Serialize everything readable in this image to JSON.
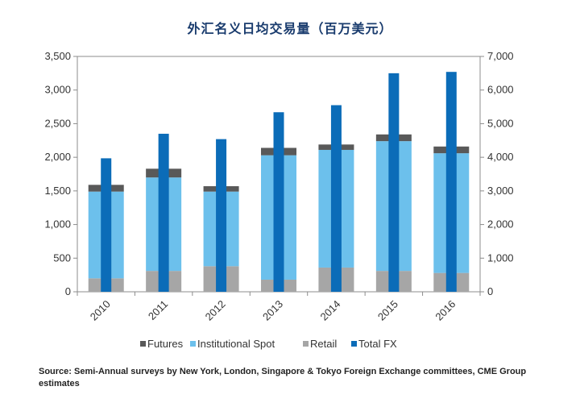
{
  "chart_data": {
    "type": "bar",
    "title": "外汇名义日均交易量（百万美元）",
    "categories": [
      "2010",
      "2011",
      "2012",
      "2013",
      "2014",
      "2015",
      "2016"
    ],
    "stacked_series_left_axis": [
      {
        "name": "Retail",
        "color": "#a6a6a6",
        "values": [
          200,
          310,
          380,
          180,
          360,
          310,
          280
        ]
      },
      {
        "name": "Institutional Spot",
        "color": "#6cc0ec",
        "values": [
          1290,
          1390,
          1110,
          1850,
          1750,
          1930,
          1780
        ]
      },
      {
        "name": "Futures",
        "color": "#595959",
        "values": [
          100,
          130,
          80,
          110,
          80,
          100,
          100
        ]
      }
    ],
    "series_right_axis": [
      {
        "name": "Total FX",
        "color": "#0b6cb8",
        "values": [
          3970,
          4700,
          4540,
          5340,
          5550,
          6500,
          6540
        ]
      }
    ],
    "left_axis": {
      "ylim": [
        0,
        3500
      ],
      "ticks": [
        "0",
        "500",
        "1,000",
        "1,500",
        "2,000",
        "2,500",
        "3,000",
        "3,500"
      ]
    },
    "right_axis": {
      "ylim": [
        0,
        7000
      ],
      "ticks": [
        "0",
        "1,000",
        "2,000",
        "3,000",
        "4,000",
        "5,000",
        "6,000",
        "7,000"
      ]
    },
    "legend": [
      "Futures",
      "Institutional Spot",
      "Retail",
      "Total FX"
    ],
    "legend_position": "bottom",
    "grid": false
  },
  "source_note": "Source: Semi-Annual surveys by New York, London, Singapore & Tokyo Foreign Exchange committees, CME Group estimates"
}
